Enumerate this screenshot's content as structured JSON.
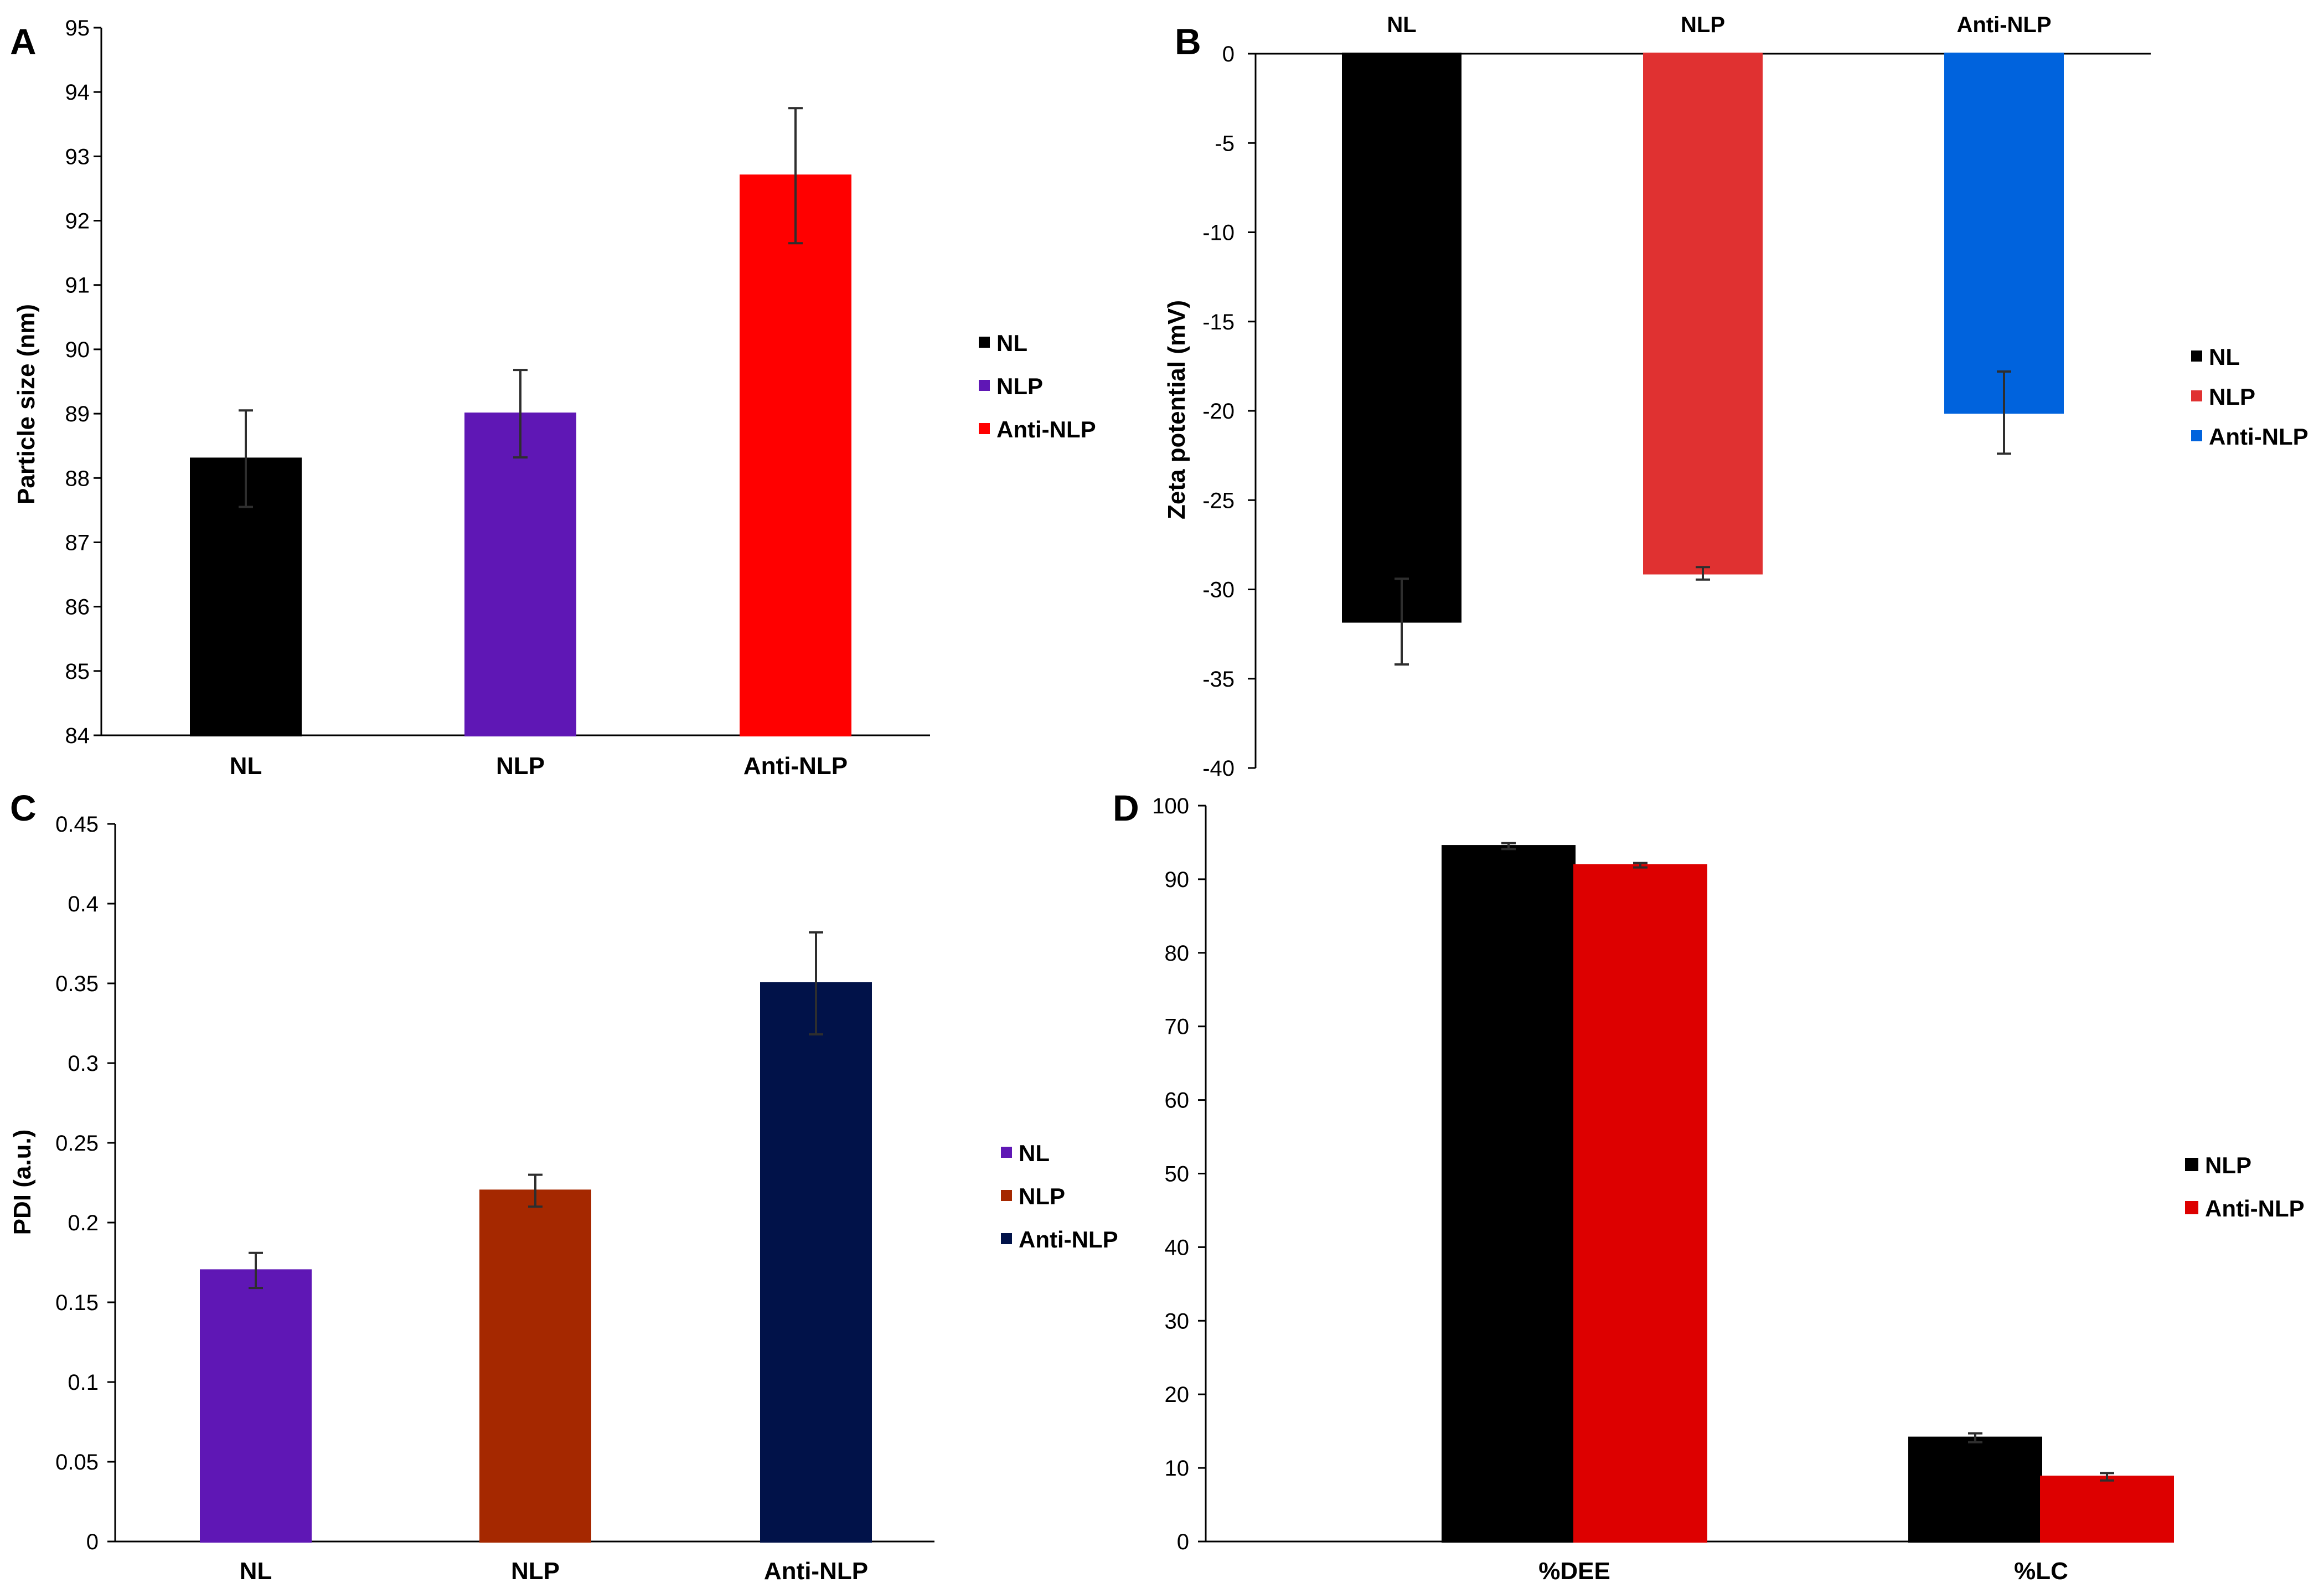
{
  "chart_data": [
    {
      "panel": "A",
      "type": "bar",
      "categories": [
        "NL",
        "NLP",
        "Anti-NLP"
      ],
      "values": [
        88.3,
        89.0,
        92.7
      ],
      "errors": [
        0.75,
        0.68,
        1.05
      ],
      "colors": [
        "#000000",
        "#5f17b5",
        "#ff0000"
      ],
      "ylabel": "Particle size (nm)",
      "xlabel": "",
      "ylim": [
        84,
        95
      ],
      "yticks": [
        84,
        85,
        86,
        87,
        88,
        89,
        90,
        91,
        92,
        93,
        94,
        95
      ],
      "ytick_labels": [
        "84",
        "85",
        "86",
        "87",
        "88",
        "89",
        "90",
        "91",
        "92",
        "93",
        "94",
        "95"
      ],
      "legend": [
        "NL",
        "NLP",
        "Anti-NLP"
      ],
      "legend_position": "right"
    },
    {
      "panel": "B",
      "type": "bar",
      "categories": [
        "NL",
        "NLP",
        "Anti-NLP"
      ],
      "values": [
        -31.8,
        -29.1,
        -20.1
      ],
      "errors": [
        2.4,
        0.35,
        2.3
      ],
      "colors": [
        "#000000",
        "#e03131",
        "#0063dd"
      ],
      "ylabel": "Zeta potential (mV)",
      "xlabel": "",
      "ylim": [
        -40,
        0
      ],
      "yticks": [
        0,
        -5,
        -10,
        -15,
        -20,
        -25,
        -30,
        -35,
        -40
      ],
      "ytick_labels": [
        "0",
        "-5",
        "-10",
        "-15",
        "-20",
        "-25",
        "-30",
        "-35",
        "-40"
      ],
      "category_labels_position": "top",
      "legend": [
        "NL",
        "NLP",
        "Anti-NLP"
      ],
      "legend_position": "right"
    },
    {
      "panel": "C",
      "type": "bar",
      "categories": [
        "NL",
        "NLP",
        "Anti-NLP"
      ],
      "values": [
        0.17,
        0.22,
        0.35
      ],
      "errors": [
        0.011,
        0.01,
        0.032
      ],
      "colors": [
        "#5f17b5",
        "#a52800",
        "#011249"
      ],
      "ylabel": "PDI (a.u.)",
      "xlabel": "",
      "ylim": [
        0,
        0.45
      ],
      "yticks": [
        0,
        0.05,
        0.1,
        0.15,
        0.2,
        0.25,
        0.3,
        0.35,
        0.4,
        0.45
      ],
      "ytick_labels": [
        "0",
        "0.05",
        "0.1",
        "0.15",
        "0.2",
        "0.25",
        "0.3",
        "0.35",
        "0.4",
        "0.45"
      ],
      "legend": [
        "NL",
        "NLP",
        "Anti-NLP"
      ],
      "legend_position": "right"
    },
    {
      "panel": "D",
      "type": "bar",
      "categories": [
        "%DEE",
        "%LC"
      ],
      "series": [
        {
          "name": "NLP",
          "color": "#000000",
          "values": [
            94.5,
            14.1
          ],
          "errors": [
            0.4,
            0.6
          ]
        },
        {
          "name": "Anti-NLP",
          "color": "#dd0000",
          "values": [
            91.9,
            8.8
          ],
          "errors": [
            0.3,
            0.5
          ]
        }
      ],
      "ylabel": "",
      "xlabel": "",
      "ylim": [
        0,
        100
      ],
      "yticks": [
        0,
        10,
        20,
        30,
        40,
        50,
        60,
        70,
        80,
        90,
        100
      ],
      "ytick_labels": [
        "0",
        "10",
        "20",
        "30",
        "40",
        "50",
        "60",
        "70",
        "80",
        "90",
        "100"
      ],
      "legend": [
        "NLP",
        "Anti-NLP"
      ],
      "legend_position": "right"
    }
  ]
}
